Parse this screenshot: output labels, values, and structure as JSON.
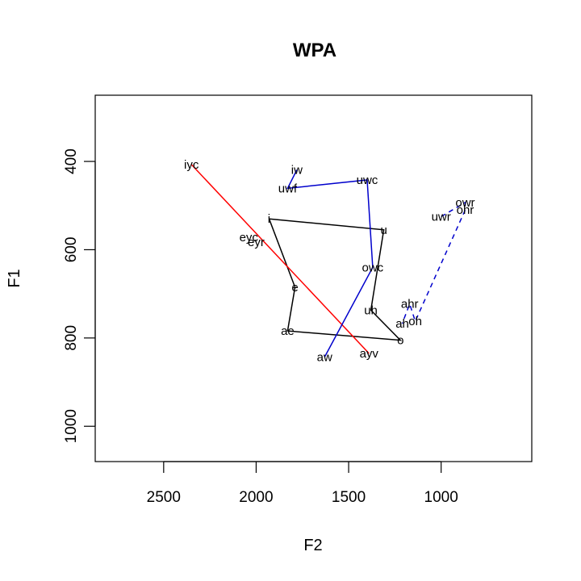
{
  "chart_data": {
    "type": "line",
    "title": "WPA",
    "xlabel": "F2",
    "ylabel": "F1",
    "xlim": [
      2870,
      510
    ],
    "ylim": [
      1080,
      250
    ],
    "x_ticks": [
      2500,
      2000,
      1500,
      1000
    ],
    "x_tick_labels": [
      "2500",
      "2000",
      "1500",
      "1000"
    ],
    "y_ticks": [
      400,
      600,
      800,
      1000
    ],
    "y_tick_labels": [
      "400",
      "600",
      "800",
      "1000"
    ],
    "grid": false,
    "legend": "none",
    "points": [
      {
        "label": "iyc",
        "f2": 2350,
        "f1": 407
      },
      {
        "label": "iw",
        "f2": 1780,
        "f1": 419
      },
      {
        "label": "uwc",
        "f2": 1400,
        "f1": 442
      },
      {
        "label": "uwf",
        "f2": 1830,
        "f1": 461
      },
      {
        "label": "owr",
        "f2": 870,
        "f1": 493
      },
      {
        "label": "ohr",
        "f2": 870,
        "f1": 510
      },
      {
        "label": "uwr",
        "f2": 1000,
        "f1": 525
      },
      {
        "label": "i",
        "f2": 1930,
        "f1": 530
      },
      {
        "label": "u",
        "f2": 1310,
        "f1": 555
      },
      {
        "label": "eyc",
        "f2": 2040,
        "f1": 572
      },
      {
        "label": "eyr",
        "f2": 2000,
        "f1": 583
      },
      {
        "label": "owc",
        "f2": 1370,
        "f1": 640
      },
      {
        "label": "e",
        "f2": 1790,
        "f1": 685
      },
      {
        "label": "ahr",
        "f2": 1170,
        "f1": 723
      },
      {
        "label": "uh",
        "f2": 1380,
        "f1": 737
      },
      {
        "label": "ah",
        "f2": 1210,
        "f1": 767
      },
      {
        "label": "oh",
        "f2": 1140,
        "f1": 762
      },
      {
        "label": "ae",
        "f2": 1830,
        "f1": 784
      },
      {
        "label": "o",
        "f2": 1220,
        "f1": 805
      },
      {
        "label": "aw",
        "f2": 1630,
        "f1": 843
      },
      {
        "label": "ayv",
        "f2": 1390,
        "f1": 835
      }
    ],
    "series": [
      {
        "color": "#000000",
        "dash": "solid",
        "path": [
          "i",
          "u",
          "uh",
          "o",
          "ae",
          "e",
          "i"
        ]
      },
      {
        "color": "#ff0000",
        "dash": "solid",
        "path": [
          "iyc",
          "ayv"
        ]
      },
      {
        "color": "#0000cc",
        "dash": "solid",
        "path": [
          "iw",
          "uwf",
          "uwc",
          "owc",
          "aw"
        ]
      },
      {
        "color": "#0000cc",
        "dash": "dashed",
        "path": [
          "uwr",
          "owr",
          "ohr",
          "oh",
          "ahr",
          "ah"
        ]
      }
    ]
  }
}
